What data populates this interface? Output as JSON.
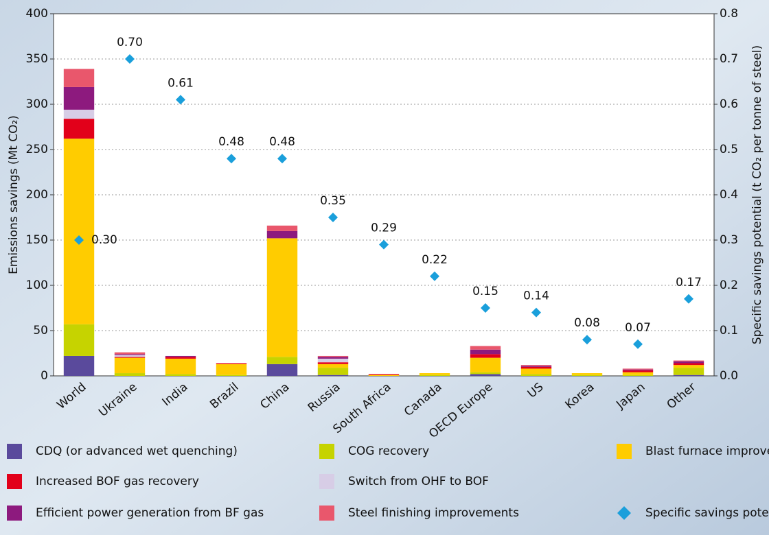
{
  "chart_data": {
    "type": "bar",
    "stacked": true,
    "categories": [
      "World",
      "Ukraine",
      "India",
      "Brazil",
      "China",
      "Russia",
      "South Africa",
      "Canada",
      "OECD Europe",
      "US",
      "Korea",
      "Japan",
      "Other"
    ],
    "ylabel": "Emissions savings (Mt CO₂)",
    "y2label": "Specific savings potential (t CO₂ per tonne of steel)",
    "ylim": [
      0,
      400
    ],
    "yticks": [
      0,
      50,
      100,
      150,
      200,
      250,
      300,
      350,
      400
    ],
    "y2lim": [
      0,
      0.8
    ],
    "y2ticks": [
      {
        "value": 0,
        "label": "0.0"
      },
      {
        "value": 0.1,
        "label": "0.1"
      },
      {
        "value": 0.2,
        "label": "0.2"
      },
      {
        "value": 0.3,
        "label": "0.3"
      },
      {
        "value": 0.4,
        "label": "0.4"
      },
      {
        "value": 0.5,
        "label": "0.5"
      },
      {
        "value": 0.6,
        "label": "0.6"
      },
      {
        "value": 0.7,
        "label": "0.7"
      },
      {
        "value": 0.8,
        "label": "0.8"
      }
    ],
    "grid": true,
    "series": [
      {
        "name": "CDQ (or advanced wet quenching)",
        "color": "#5a4a9c",
        "values": [
          22,
          0,
          0,
          0,
          13,
          1,
          0,
          0,
          2,
          0,
          0,
          0,
          1
        ]
      },
      {
        "name": "COG recovery",
        "color": "#c6d300",
        "values": [
          35,
          3,
          2,
          1,
          8,
          8,
          0,
          1,
          2,
          2,
          1,
          1,
          8
        ]
      },
      {
        "name": "Blast furnace improvements",
        "color": "#ffcc00",
        "values": [
          205,
          17,
          17,
          12,
          131,
          4,
          1,
          2,
          16,
          6,
          2,
          3,
          3
        ]
      },
      {
        "name": "Increased BOF gas recovery",
        "color": "#e2001a",
        "values": [
          22,
          1,
          2,
          1,
          0,
          2,
          1,
          0,
          4,
          2,
          0,
          2,
          2
        ]
      },
      {
        "name": "Switch from OHF to BOF",
        "color": "#d7cde6",
        "values": [
          10,
          2,
          0,
          0,
          0,
          4,
          0,
          0,
          0,
          0,
          0,
          0,
          0
        ]
      },
      {
        "name": "Efficient power generation from BF gas",
        "color": "#8d1a7e",
        "values": [
          25,
          1,
          1,
          0,
          8,
          2,
          0,
          0,
          5,
          1,
          0,
          1,
          2
        ]
      },
      {
        "name": "Steel finishing improvements",
        "color": "#e9576c",
        "values": [
          20,
          2,
          0,
          0,
          6,
          1,
          0,
          0,
          4,
          1,
          0,
          1,
          1
        ]
      },
      {
        "name": "Specific savings potential",
        "color": "#1a9fdb",
        "axis": "y2",
        "type": "scatter",
        "values": [
          0.3,
          0.7,
          0.61,
          0.48,
          0.48,
          0.35,
          0.29,
          0.22,
          0.15,
          0.14,
          0.08,
          0.07,
          0.17
        ],
        "value_labels": [
          "0.30",
          "0.70",
          "0.61",
          "0.48",
          "0.48",
          "0.35",
          "0.29",
          "0.22",
          "0.15",
          "0.14",
          "0.08",
          "0.07",
          "0.17"
        ]
      }
    ]
  }
}
